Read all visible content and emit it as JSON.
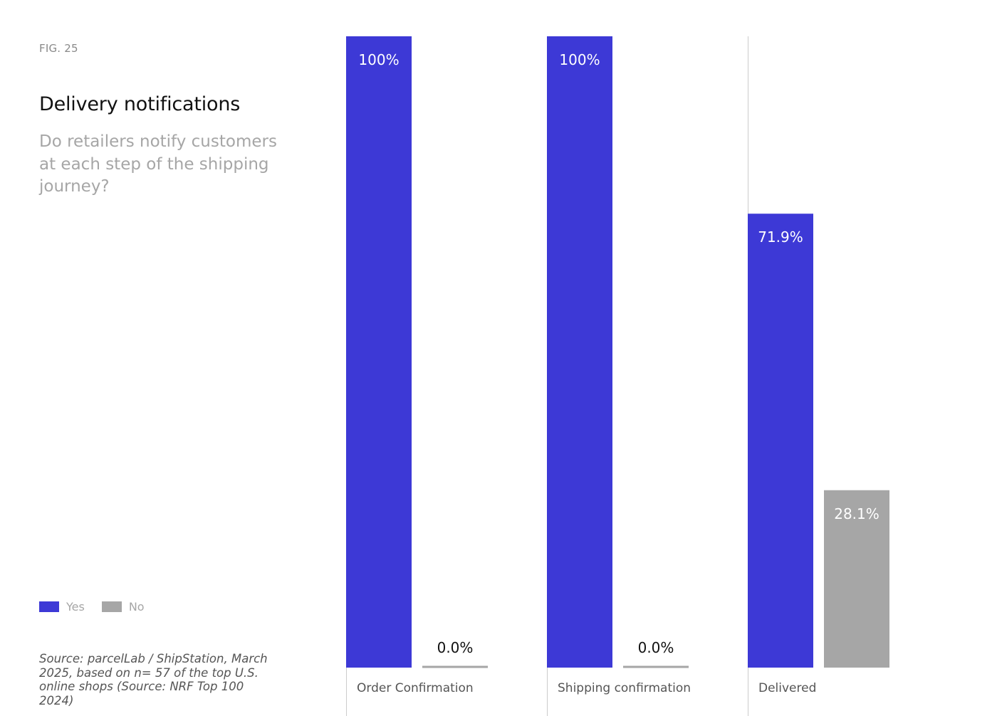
{
  "fig_label": "FIG. 25",
  "title": "Delivery notifications",
  "subtitle": "Do retailers notify customers at each step of the shipping journey?",
  "source": "Source: parcelLab / ShipStation, March 2025, based on n= 57 of the top U.S. online shops (Source: NRF Top 100 2024)",
  "colors": {
    "yes": "#3d39d6",
    "no": "#a6a6a6",
    "divider": "#cccccc",
    "label_inside": "#ffffff",
    "label_outside": "#111111",
    "category_text": "#555555"
  },
  "chart_data": {
    "type": "bar",
    "categories": [
      "Order Confirmation",
      "Shipping confirmation",
      "Delivered"
    ],
    "series": [
      {
        "name": "Yes",
        "values": [
          100,
          100,
          71.9
        ]
      },
      {
        "name": "No",
        "values": [
          0,
          0,
          28.1
        ]
      }
    ],
    "data_labels": [
      [
        "100%",
        "100%",
        "71.9%"
      ],
      [
        "0.0%",
        "0.0%",
        "28.1%"
      ]
    ],
    "ylim": [
      0,
      100
    ],
    "grid": false,
    "legend_position": "bottom-left"
  }
}
